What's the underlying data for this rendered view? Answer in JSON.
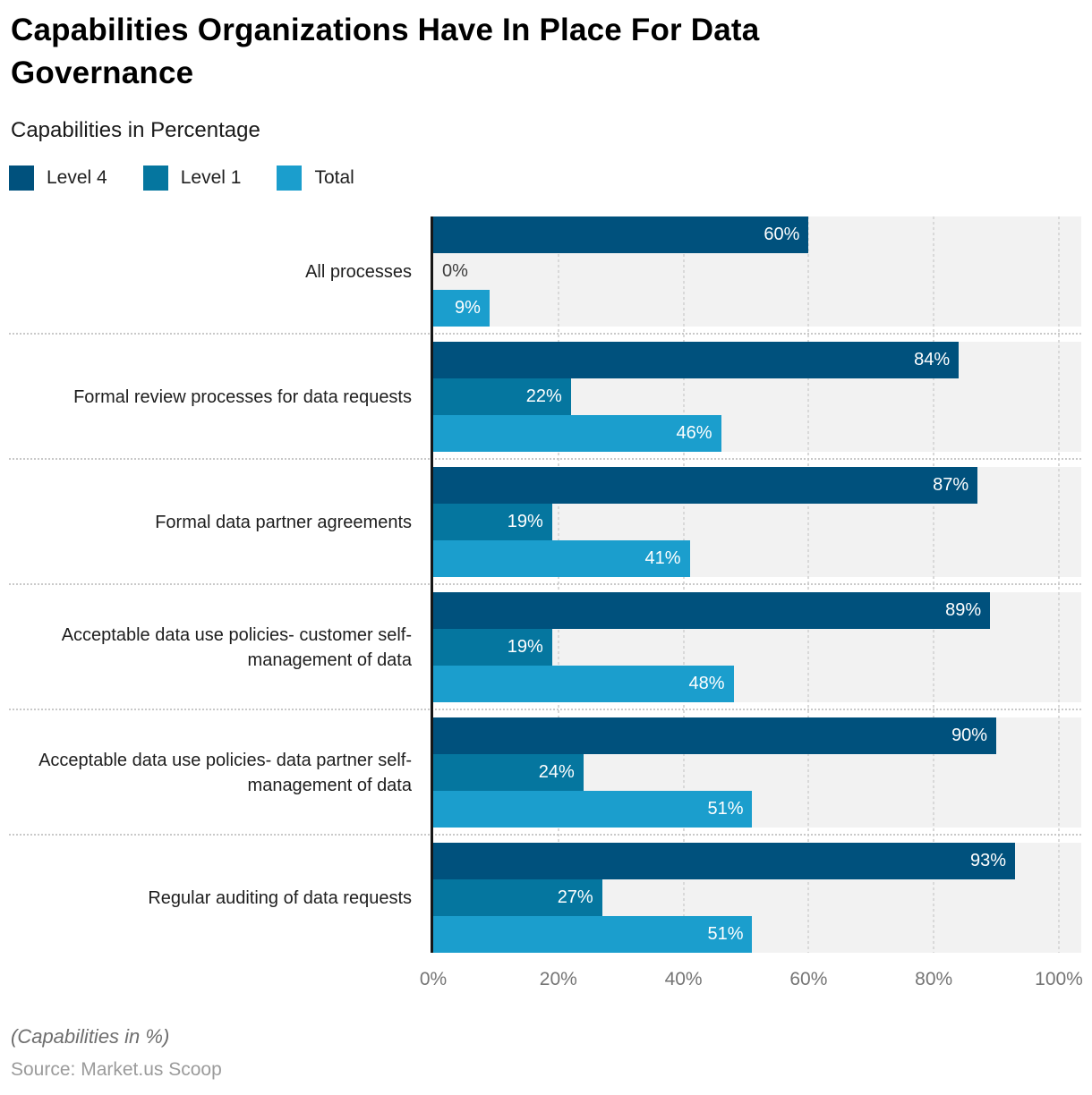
{
  "header": {
    "title_line1": "Capabilities Organizations Have In Place For Data",
    "title_line2": "Governance",
    "subtitle": "Capabilities in Percentage"
  },
  "legend": {
    "items": [
      {
        "label": "Level 4",
        "color": "#00517d"
      },
      {
        "label": "Level 1",
        "color": "#05769f"
      },
      {
        "label": "Total",
        "color": "#1b9ecd"
      }
    ]
  },
  "chart_data": {
    "type": "bar",
    "orientation": "horizontal",
    "title": "Capabilities Organizations Have In Place For Data Governance",
    "subtitle": "Capabilities in Percentage",
    "categories": [
      "All processes",
      "Formal review processes for data requests",
      "Formal data partner agreements",
      "Acceptable data use policies- customer self-management of data",
      "Acceptable data use policies- data partner self-management of data",
      "Regular auditing of data requests"
    ],
    "series": [
      {
        "name": "Level 4",
        "color": "#00517d",
        "values": [
          60,
          84,
          87,
          89,
          90,
          93
        ]
      },
      {
        "name": "Level 1",
        "color": "#05769f",
        "values": [
          0,
          22,
          19,
          19,
          24,
          27
        ]
      },
      {
        "name": "Total",
        "color": "#1b9ecd",
        "values": [
          9,
          46,
          41,
          48,
          51,
          51
        ]
      }
    ],
    "value_suffix": "%",
    "xlim": [
      0,
      100
    ],
    "x_ticks": [
      {
        "label": "0%",
        "value": 0
      },
      {
        "label": "20%",
        "value": 20
      },
      {
        "label": "40%",
        "value": 40
      },
      {
        "label": "60%",
        "value": 60
      },
      {
        "label": "80%",
        "value": 80
      },
      {
        "label": "100%",
        "value": 100
      }
    ],
    "grid": "vertical-dashed",
    "legend_position": "top-left",
    "plot_background": "#f2f2f2",
    "bar_value_label_color": "#ffffff",
    "zero_value_label_color": "#3d3d3d"
  },
  "footer": {
    "note": "(Capabilities in %)",
    "source": "Source: Market.us Scoop"
  }
}
